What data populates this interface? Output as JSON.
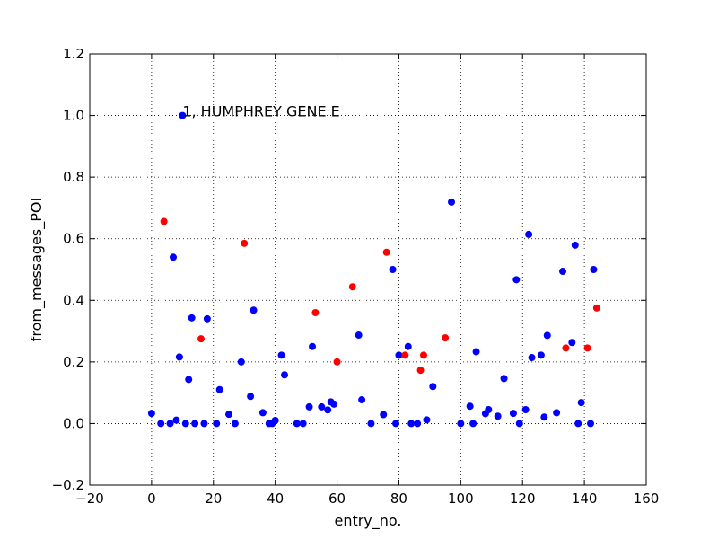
{
  "chart_data": {
    "type": "scatter",
    "xlabel": "entry_no.",
    "ylabel": "from_messages_POI",
    "xlim": [
      -20,
      160
    ],
    "ylim": [
      -0.2,
      1.2
    ],
    "x_ticks": [
      -20,
      0,
      20,
      40,
      60,
      80,
      100,
      120,
      140,
      160
    ],
    "y_ticks": [
      -0.2,
      0.0,
      0.2,
      0.4,
      0.6,
      0.8,
      1.0,
      1.2
    ],
    "x_tick_labels": [
      "−20",
      "0",
      "20",
      "40",
      "60",
      "80",
      "100",
      "120",
      "140",
      "160"
    ],
    "y_tick_labels": [
      "−0.2",
      "0.0",
      "0.2",
      "0.4",
      "0.6",
      "0.8",
      "1.0",
      "1.2"
    ],
    "grid": true,
    "colors": {
      "blue": "#0000ff",
      "red": "#ff0000"
    },
    "series": [
      {
        "color": "blue",
        "points": [
          [
            0,
            0.033
          ],
          [
            3,
            0.0
          ],
          [
            6,
            0.0
          ],
          [
            7,
            0.54
          ],
          [
            8,
            0.011
          ],
          [
            9,
            0.216
          ],
          [
            10,
            1.0
          ],
          [
            11,
            0.0
          ],
          [
            12,
            0.143
          ],
          [
            13,
            0.343
          ],
          [
            14,
            0.0
          ],
          [
            17,
            0.0
          ],
          [
            18,
            0.34
          ],
          [
            21,
            0.0
          ],
          [
            22,
            0.11
          ],
          [
            25,
            0.03
          ],
          [
            27,
            0.0
          ],
          [
            29,
            0.2
          ],
          [
            32,
            0.088
          ],
          [
            33,
            0.368
          ],
          [
            36,
            0.035
          ],
          [
            38,
            0.0
          ],
          [
            39,
            0.0
          ],
          [
            40,
            0.01
          ],
          [
            42,
            0.222
          ],
          [
            43,
            0.158
          ],
          [
            47,
            0.0
          ],
          [
            49,
            0.0
          ],
          [
            51,
            0.054
          ],
          [
            52,
            0.25
          ],
          [
            55,
            0.054
          ],
          [
            57,
            0.044
          ],
          [
            58,
            0.07
          ],
          [
            59,
            0.063
          ],
          [
            67,
            0.287
          ],
          [
            68,
            0.077
          ],
          [
            71,
            0.0
          ],
          [
            75,
            0.029
          ],
          [
            78,
            0.5
          ],
          [
            79,
            0.0
          ],
          [
            80,
            0.222
          ],
          [
            83,
            0.25
          ],
          [
            84,
            0.0
          ],
          [
            86,
            0.0
          ],
          [
            89,
            0.012
          ],
          [
            91,
            0.12
          ],
          [
            97,
            0.719
          ],
          [
            100,
            0.0
          ],
          [
            103,
            0.056
          ],
          [
            104,
            0.0
          ],
          [
            105,
            0.233
          ],
          [
            108,
            0.032
          ],
          [
            109,
            0.045
          ],
          [
            112,
            0.024
          ],
          [
            114,
            0.146
          ],
          [
            117,
            0.033
          ],
          [
            118,
            0.467
          ],
          [
            119,
            0.0
          ],
          [
            121,
            0.045
          ],
          [
            122,
            0.614
          ],
          [
            123,
            0.214
          ],
          [
            126,
            0.222
          ],
          [
            127,
            0.021
          ],
          [
            128,
            0.286
          ],
          [
            131,
            0.035
          ],
          [
            133,
            0.494
          ],
          [
            136,
            0.263
          ],
          [
            137,
            0.579
          ],
          [
            138,
            0.0
          ],
          [
            139,
            0.068
          ],
          [
            142,
            0.0
          ],
          [
            143,
            0.5
          ]
        ]
      },
      {
        "color": "red",
        "points": [
          [
            4,
            0.656
          ],
          [
            16,
            0.275
          ],
          [
            30,
            0.585
          ],
          [
            53,
            0.36
          ],
          [
            60,
            0.2
          ],
          [
            65,
            0.444
          ],
          [
            76,
            0.556
          ],
          [
            82,
            0.222
          ],
          [
            87,
            0.173
          ],
          [
            88,
            0.222
          ],
          [
            95,
            0.278
          ],
          [
            134,
            0.245
          ],
          [
            141,
            0.245
          ],
          [
            144,
            0.375
          ]
        ]
      }
    ],
    "annotations": [
      {
        "text": "1, HUMPHREY GENE E",
        "x": 10,
        "y": 1.0
      }
    ]
  }
}
